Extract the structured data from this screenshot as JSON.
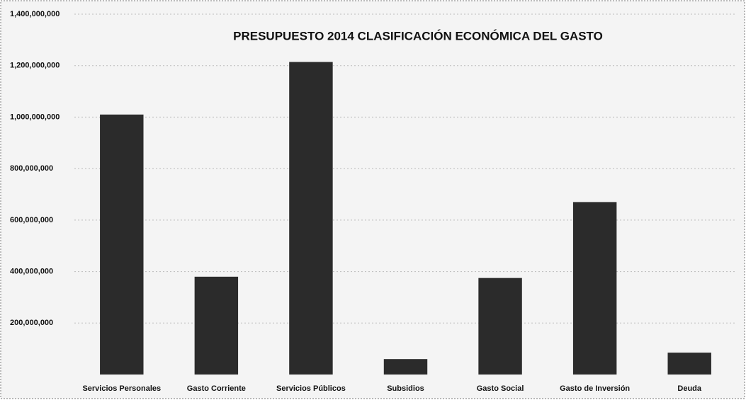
{
  "chart_data": {
    "type": "bar",
    "title": "PRESUPUESTO 2014 CLASIFICACIÓN ECONÓMICA DEL GASTO",
    "categories": [
      "Servicios Personales",
      "Gasto Corriente",
      "Servicios Públicos",
      "Subsidios",
      "Gasto Social",
      "Gasto de Inversión",
      "Deuda"
    ],
    "values": [
      1010000000,
      380000000,
      1214200000,
      60000000,
      375000000,
      670000000,
      85000000
    ],
    "color": "#2b2b2b",
    "ylim": [
      0,
      1400000000
    ],
    "yticks": [
      {
        "value": 200000000,
        "label": "200,000,000"
      },
      {
        "value": 400000000,
        "label": "400,000,000"
      },
      {
        "value": 600000000,
        "label": "600,000,000"
      },
      {
        "value": 800000000,
        "label": "800,000,000"
      },
      {
        "value": 1000000000,
        "label": "1,000,000,000"
      },
      {
        "value": 1200000000,
        "label": "1,200,000,000"
      },
      {
        "value": 1400000000,
        "label": "1,400,000,000"
      }
    ],
    "grid": true
  }
}
